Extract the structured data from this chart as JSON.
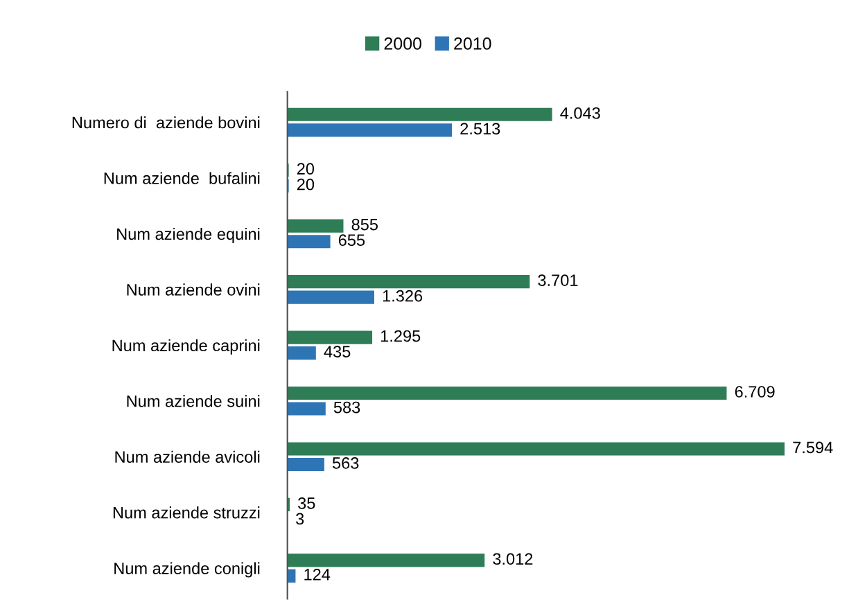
{
  "chart_data": {
    "type": "bar",
    "orientation": "horizontal",
    "legend": "top",
    "categories": [
      "Numero di  aziende bovini",
      "Num aziende  bufalini",
      "Num aziende equini",
      "Num aziende ovini",
      "Num aziende caprini",
      "Num aziende suini",
      "Num aziende avicoli",
      "Num aziende struzzi",
      "Num aziende conigli"
    ],
    "series": [
      {
        "name": "2000",
        "color": "#2e7d57",
        "values": [
          4043,
          20,
          855,
          3701,
          1295,
          6709,
          7594,
          35,
          3012
        ],
        "value_labels": [
          "4.043",
          "20",
          "855",
          "3.701",
          "1.295",
          "6.709",
          "7.594",
          "35",
          "3.012"
        ]
      },
      {
        "name": "2010",
        "color": "#2e75b6",
        "values": [
          2513,
          20,
          655,
          1326,
          435,
          583,
          563,
          3,
          124
        ],
        "value_labels": [
          "2.513",
          "20",
          "655",
          "1.326",
          "435",
          "583",
          "563",
          "3",
          "124"
        ]
      }
    ]
  }
}
